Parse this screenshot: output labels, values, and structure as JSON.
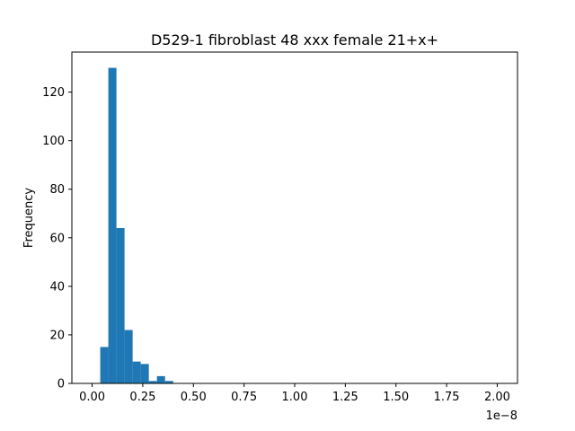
{
  "chart_data": {
    "type": "bar",
    "title": "D529-1 fibroblast 48 xxx female 21+x+",
    "xlabel": "",
    "ylabel": "Frequency",
    "x_offset_text": "1e−8",
    "xlim": [
      -0.1,
      2.1
    ],
    "ylim": [
      0,
      136.5
    ],
    "xticks": [
      0.0,
      0.25,
      0.5,
      0.75,
      1.0,
      1.25,
      1.5,
      1.75,
      2.0
    ],
    "xtick_labels": [
      "0.00",
      "0.25",
      "0.50",
      "0.75",
      "1.00",
      "1.25",
      "1.50",
      "1.75",
      "2.00"
    ],
    "yticks": [
      0,
      20,
      40,
      60,
      80,
      100,
      120
    ],
    "ytick_labels": [
      "0",
      "20",
      "40",
      "60",
      "80",
      "100",
      "120"
    ],
    "bar_color": "#1f77b4",
    "bin_width": 0.04,
    "bins": [
      {
        "x0": 0.04,
        "count": 15
      },
      {
        "x0": 0.08,
        "count": 130
      },
      {
        "x0": 0.12,
        "count": 64
      },
      {
        "x0": 0.16,
        "count": 22
      },
      {
        "x0": 0.2,
        "count": 9
      },
      {
        "x0": 0.24,
        "count": 8
      },
      {
        "x0": 0.28,
        "count": 1
      },
      {
        "x0": 0.32,
        "count": 3
      },
      {
        "x0": 0.36,
        "count": 1
      }
    ]
  }
}
